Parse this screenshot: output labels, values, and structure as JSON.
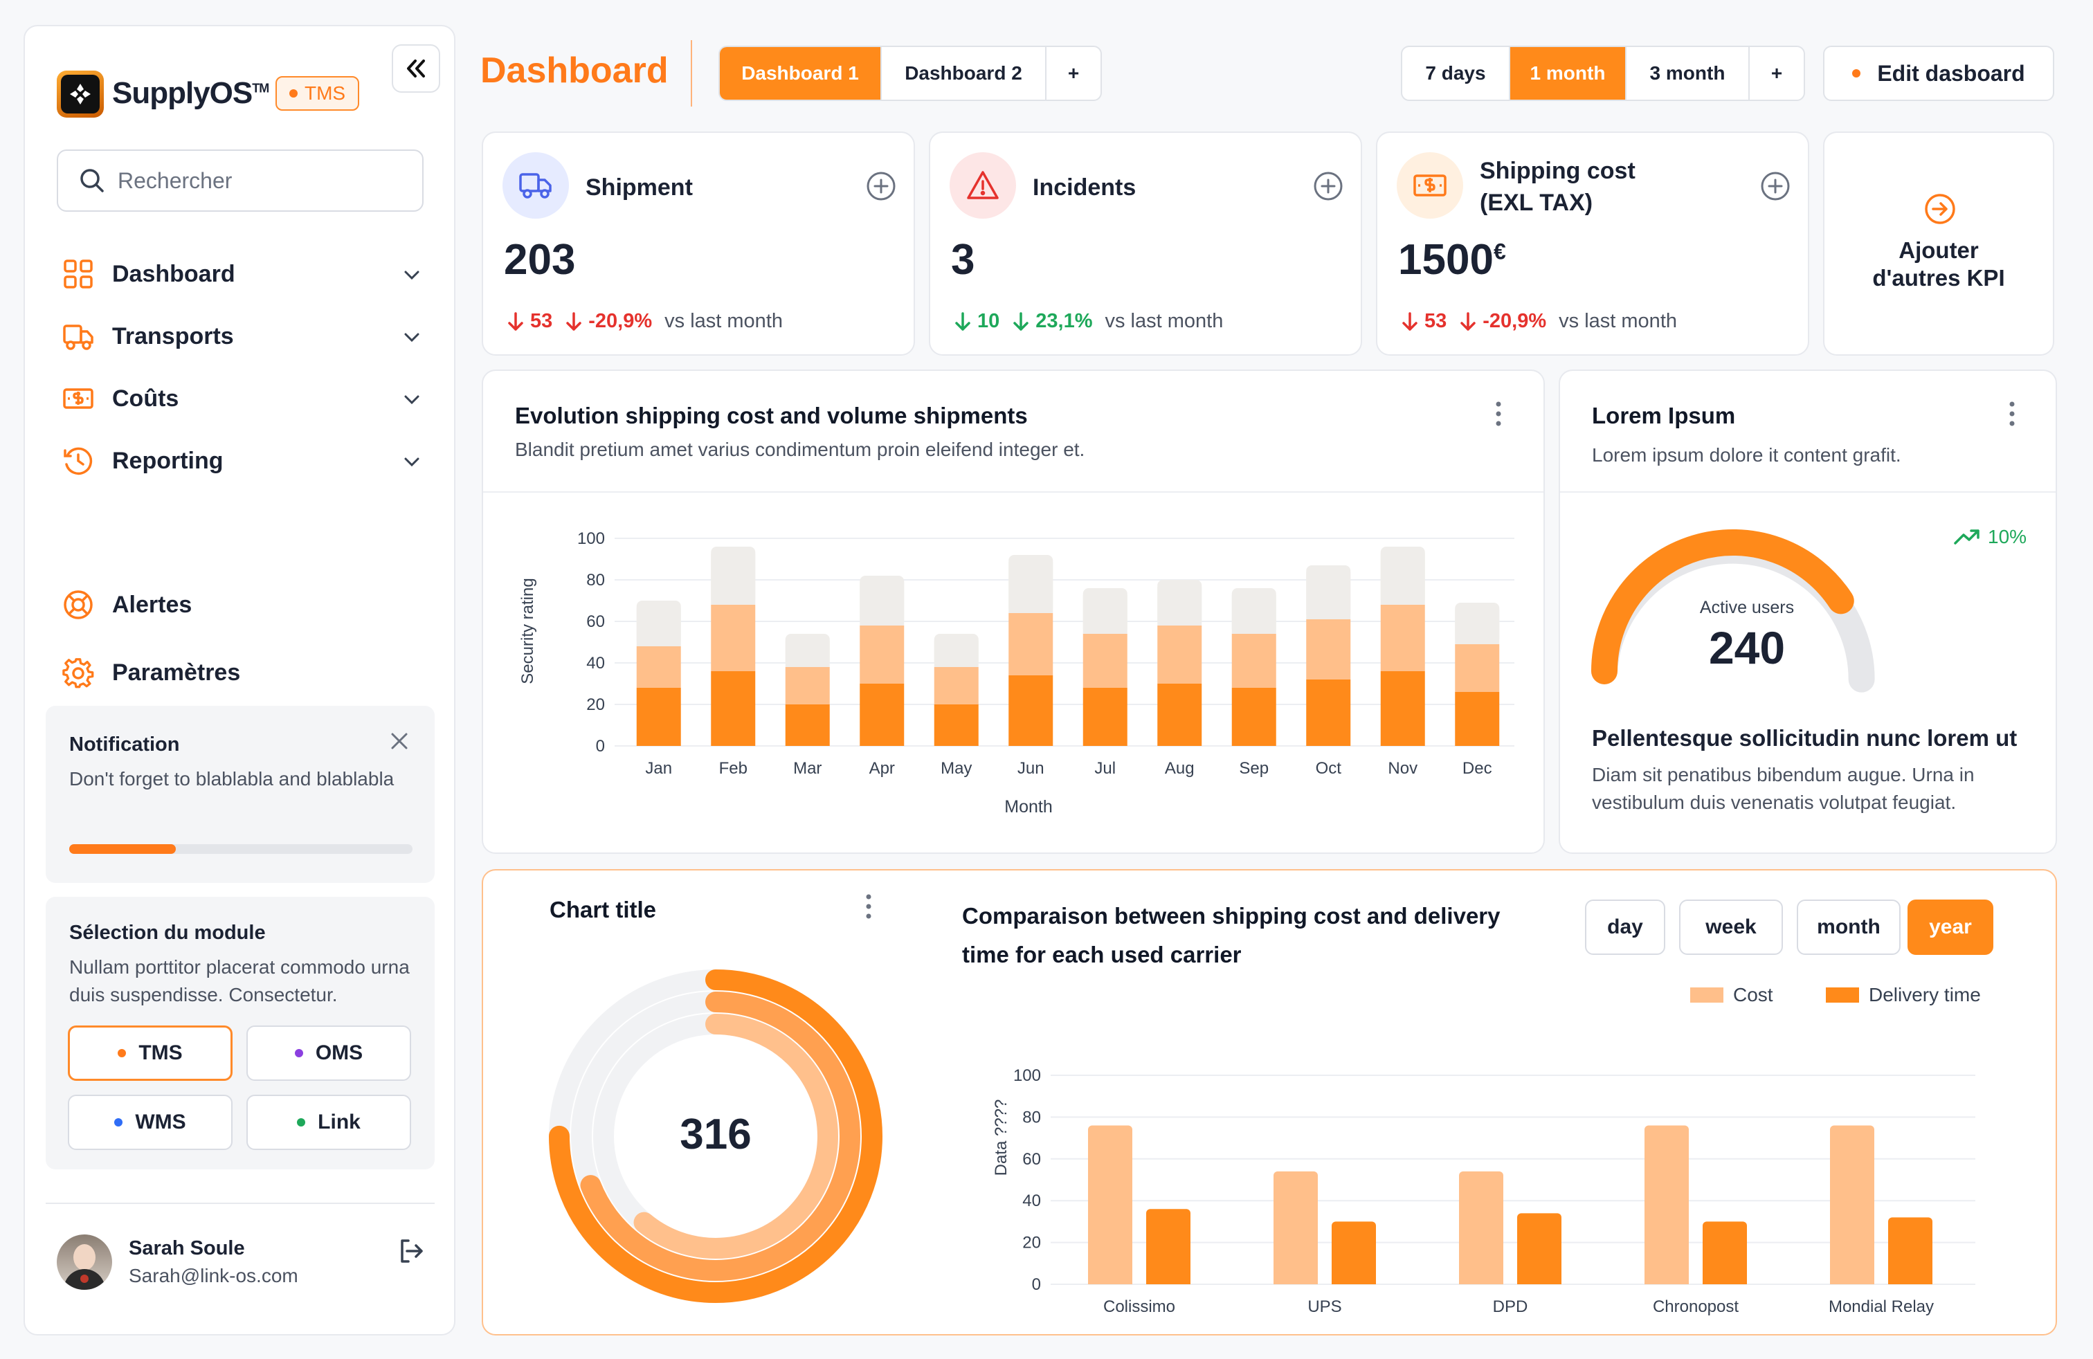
{
  "sidebar": {
    "brand": "SupplyOS",
    "brand_tm": "TM",
    "module_badge": "TMS",
    "search_placeholder": "Rechercher",
    "nav": [
      {
        "label": "Dashboard",
        "icon": "grid-icon"
      },
      {
        "label": "Transports",
        "icon": "truck-icon"
      },
      {
        "label": "Coûts",
        "icon": "money-icon"
      },
      {
        "label": "Reporting",
        "icon": "clock-icon"
      }
    ],
    "alerts_label": "Alertes",
    "settings_label": "Paramètres",
    "notification": {
      "title": "Notification",
      "text": "Don't forget to blablabla and blablabla",
      "progress": 0.31
    },
    "module_selection": {
      "title": "Sélection du module",
      "text": "Nullam porttitor placerat commodo urna duis suspendisse. Consectetur.",
      "modules": [
        {
          "label": "TMS",
          "color": "#ff7a1a",
          "active": true
        },
        {
          "label": "OMS",
          "color": "#8b3fe0",
          "active": false
        },
        {
          "label": "WMS",
          "color": "#2f6df6",
          "active": false
        },
        {
          "label": "Link",
          "color": "#1ea85a",
          "active": false
        }
      ]
    },
    "user": {
      "name": "Sarah Soule",
      "email": "Sarah@link-os.com"
    }
  },
  "header": {
    "title": "Dashboard",
    "tabs": [
      "Dashboard 1",
      "Dashboard 2",
      "+"
    ],
    "ranges": [
      "7 days",
      "1 month",
      "3 month",
      "+"
    ],
    "active_range": "1 month",
    "edit_label": "Edit dasboard"
  },
  "kpis": [
    {
      "title": "Shipment",
      "value": "203",
      "delta_abs": "53",
      "delta_pct": "-20,9%",
      "trend": "down",
      "suffix": "vs last month"
    },
    {
      "title": "Incidents",
      "value": "3",
      "delta_abs": "10",
      "delta_pct": "23,1%",
      "trend": "up",
      "suffix": "vs last month"
    },
    {
      "title_line1": "Shipping cost",
      "title_line2": "(EXL TAX)",
      "value": "1500",
      "currency": "€",
      "delta_abs": "53",
      "delta_pct": "-20,9%",
      "trend": "down",
      "suffix": "vs last month"
    }
  ],
  "add_kpi": {
    "line1": "Ajouter",
    "line2": "d'autres KPI"
  },
  "evolution": {
    "title": "Evolution shipping cost and volume shipments",
    "subtitle": "Blandit pretium amet varius condimentum proin eleifend integer et."
  },
  "lorem_card": {
    "title": "Lorem Ipsum",
    "subtitle": "Lorem ipsum dolore it content grafit.",
    "trend": "10%",
    "gauge_label": "Active users",
    "gauge_value": "240",
    "gauge_fraction": 0.8,
    "heading": "Pellentesque sollicitudin nunc lorem ut",
    "text": "Diam sit penatibus bibendum augue. Urna in vestibulum duis venenatis volutpat feugiat."
  },
  "donut": {
    "title": "Chart title",
    "value": "316",
    "rings": [
      0.75,
      0.69,
      0.61
    ]
  },
  "comparison": {
    "title_line1": "Comparaison between shipping cost and delivery",
    "title_line2": "time for each used carrier",
    "periods": [
      "day",
      "week",
      "month",
      "year"
    ],
    "active_period": "year"
  },
  "chart_data": [
    {
      "type": "bar",
      "stacked": true,
      "categories": [
        "Jan",
        "Feb",
        "Mar",
        "Apr",
        "May",
        "Jun",
        "Jul",
        "Aug",
        "Sep",
        "Oct",
        "Nov",
        "Dec"
      ],
      "series": [
        {
          "values": [
            28,
            36,
            20,
            30,
            20,
            34,
            28,
            30,
            28,
            32,
            36,
            26
          ],
          "color": "#ff8a1a"
        },
        {
          "values": [
            20,
            32,
            18,
            28,
            18,
            30,
            26,
            28,
            26,
            29,
            32,
            23
          ],
          "color": "#ffbf8a"
        },
        {
          "values": [
            22,
            28,
            16,
            24,
            16,
            28,
            22,
            22,
            22,
            26,
            28,
            20
          ],
          "color": "#efedea"
        }
      ],
      "xlabel": "Month",
      "ylabel": "Security rating",
      "yticks": [
        0,
        20,
        40,
        60,
        80,
        100
      ],
      "ylim": [
        0,
        100
      ],
      "grid": true
    },
    {
      "type": "bar",
      "categories": [
        "Colissimo",
        "UPS",
        "DPD",
        "Chronopost",
        "Mondial Relay"
      ],
      "series": [
        {
          "name": "Cost",
          "values": [
            76,
            54,
            54,
            76,
            76
          ],
          "color": "#ffbf8a"
        },
        {
          "name": "Delivery time",
          "values": [
            36,
            30,
            34,
            30,
            32
          ],
          "color": "#ff8a1a"
        }
      ],
      "ylabel": "Data ????",
      "yticks": [
        0,
        20,
        40,
        60,
        80,
        100
      ],
      "ylim": [
        0,
        100
      ],
      "legend": "top-right",
      "grid": true
    }
  ]
}
